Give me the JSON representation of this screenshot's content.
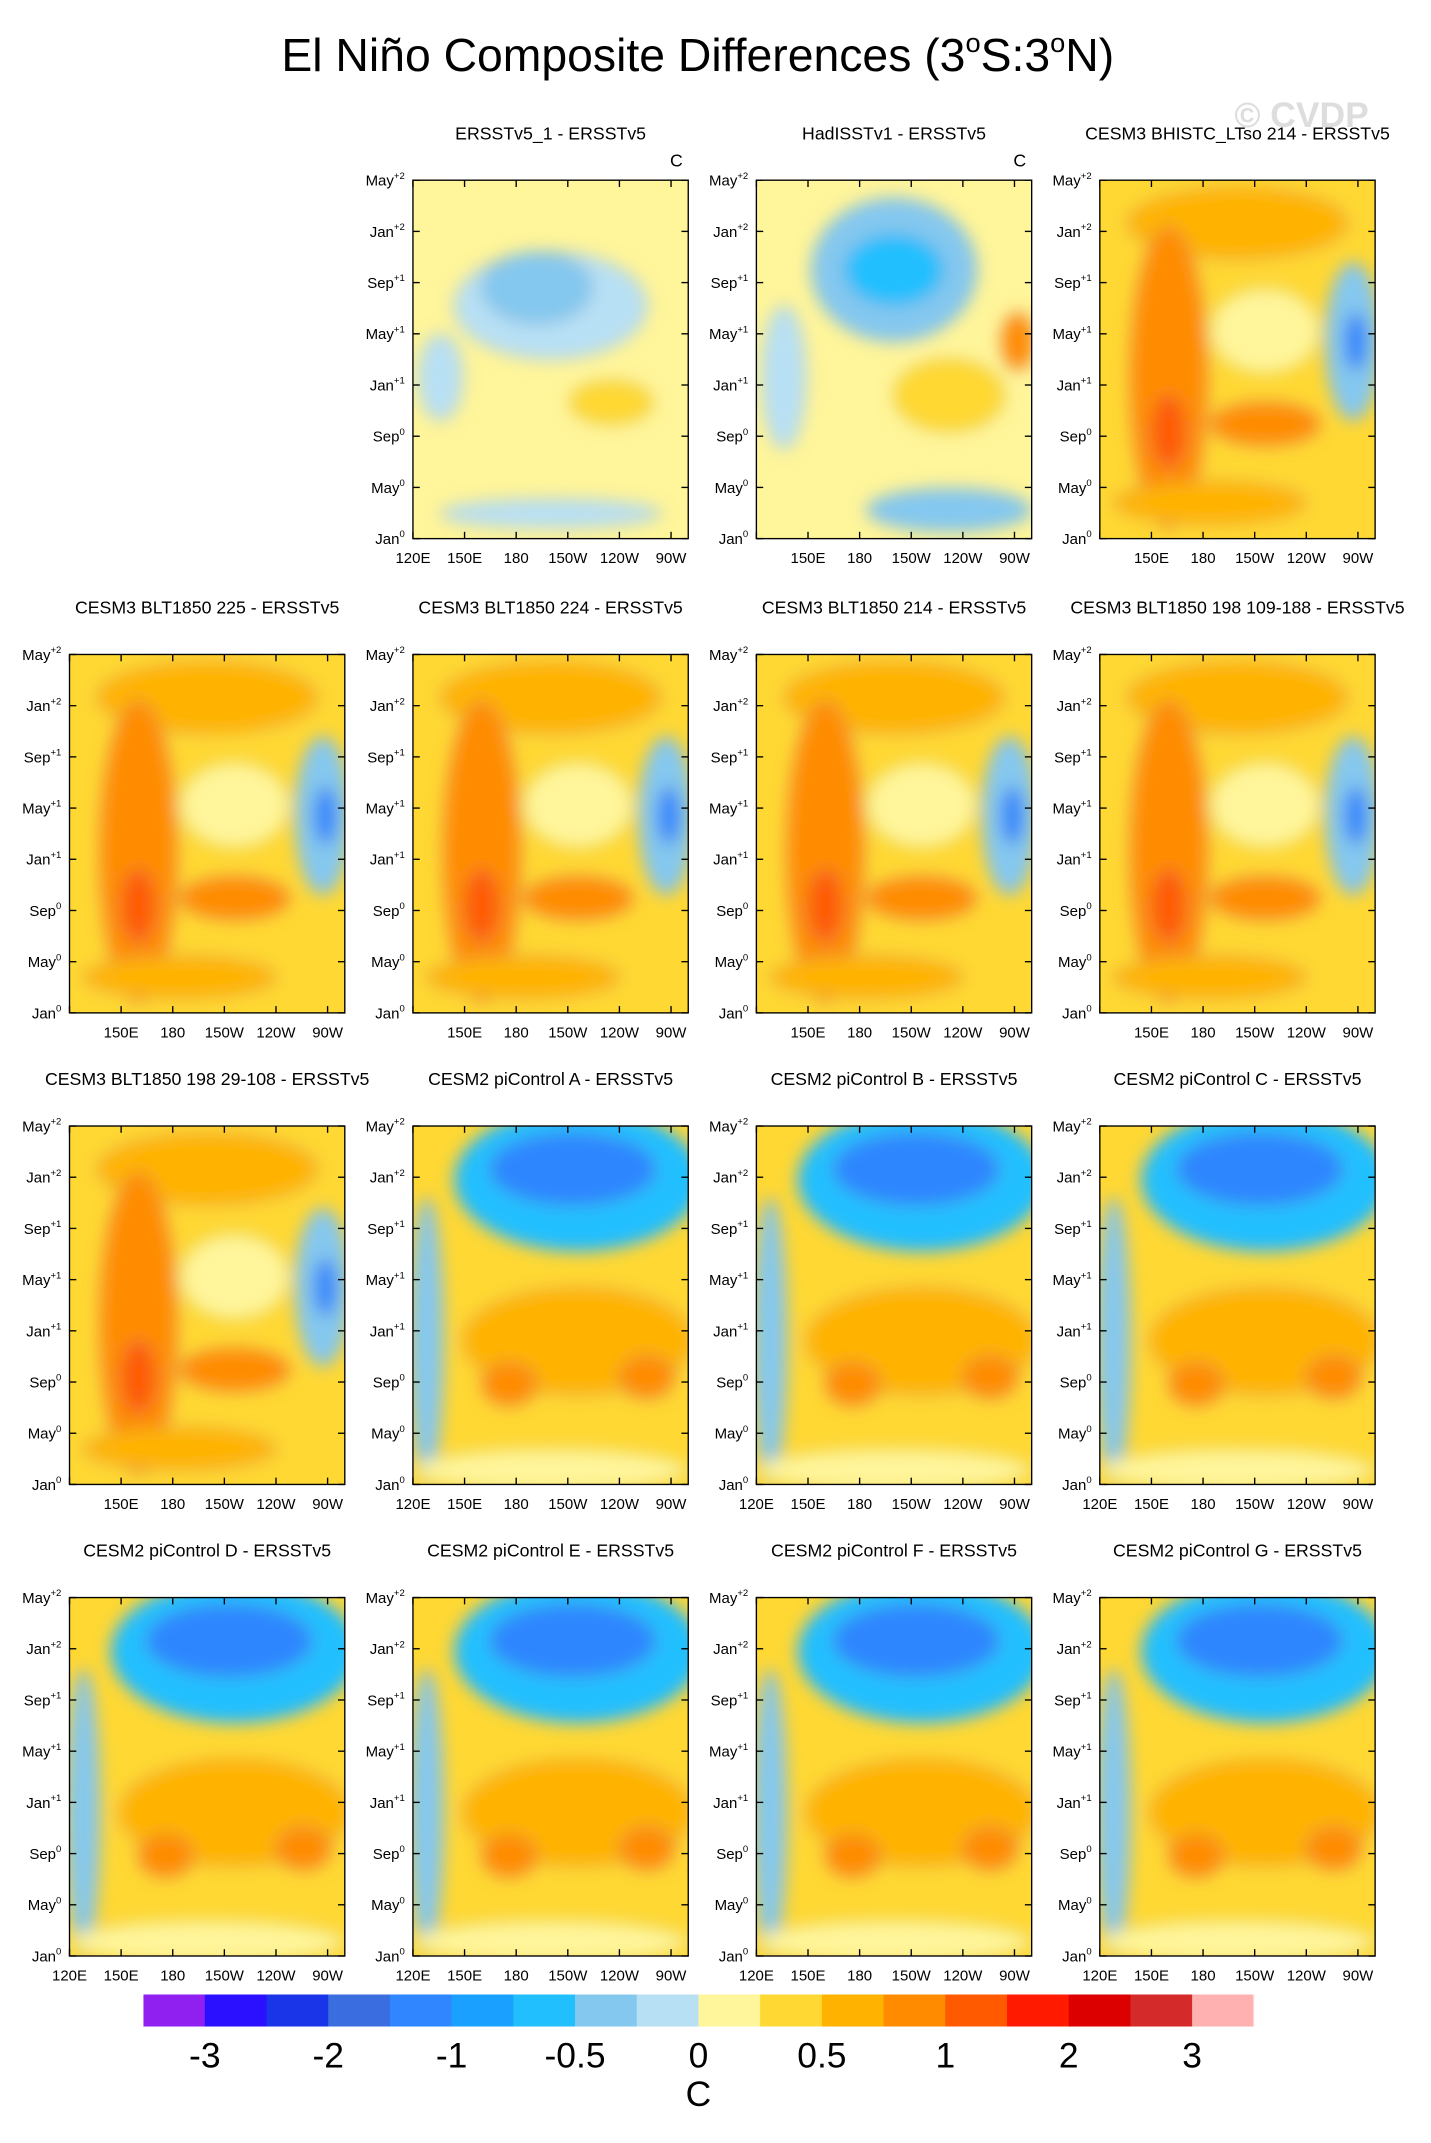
{
  "title": "El Niño Composite Differences (3",
  "title_deg1": "o",
  "title_mid": "S:3",
  "title_deg2": "o",
  "title_end": "N)",
  "watermark": "© CVDP",
  "time_ticks": [
    {
      "label": "Jan",
      "sup": "0"
    },
    {
      "label": "May",
      "sup": "0"
    },
    {
      "label": "Sep",
      "sup": "0"
    },
    {
      "label": "Jan",
      "sup": "+1"
    },
    {
      "label": "May",
      "sup": "+1"
    },
    {
      "label": "Sep",
      "sup": "+1"
    },
    {
      "label": "Jan",
      "sup": "+2"
    },
    {
      "label": "May",
      "sup": "+2"
    }
  ],
  "chart_data": [
    {
      "type": "contour",
      "title": "ERSSTv5_1 - ERSSTv5",
      "corner": "C",
      "xticks": [
        "120E",
        "150E",
        "180",
        "150W",
        "120W",
        "90W"
      ]
    },
    {
      "type": "contour",
      "title": "HadISSTv1 - ERSSTv5",
      "corner": "C",
      "xticks": [
        "150E",
        "180",
        "150W",
        "120W",
        "90W"
      ]
    },
    {
      "type": "contour",
      "title": "CESM3 BHISTC_LTso 214 - ERSSTv5",
      "xticks": [
        "150E",
        "180",
        "150W",
        "120W",
        "90W"
      ]
    },
    {
      "type": "contour",
      "title": "CESM3 BLT1850 225 - ERSSTv5",
      "xticks": [
        "150E",
        "180",
        "150W",
        "120W",
        "90W"
      ]
    },
    {
      "type": "contour",
      "title": "CESM3 BLT1850 224 - ERSSTv5",
      "xticks": [
        "150E",
        "180",
        "150W",
        "120W",
        "90W"
      ]
    },
    {
      "type": "contour",
      "title": "CESM3 BLT1850 214 - ERSSTv5",
      "xticks": [
        "150E",
        "180",
        "150W",
        "120W",
        "90W"
      ]
    },
    {
      "type": "contour",
      "title": "CESM3 BLT1850 198 109-188 - ERSSTv5",
      "xticks": [
        "150E",
        "180",
        "150W",
        "120W",
        "90W"
      ]
    },
    {
      "type": "contour",
      "title": "CESM3 BLT1850 198 29-108 - ERSSTv5",
      "xticks": [
        "150E",
        "180",
        "150W",
        "120W",
        "90W"
      ]
    },
    {
      "type": "contour",
      "title": "CESM2 piControl A - ERSSTv5",
      "xticks": [
        "120E",
        "150E",
        "180",
        "150W",
        "120W",
        "90W"
      ]
    },
    {
      "type": "contour",
      "title": "CESM2 piControl B - ERSSTv5",
      "xticks": [
        "120E",
        "150E",
        "180",
        "150W",
        "120W",
        "90W"
      ]
    },
    {
      "type": "contour",
      "title": "CESM2 piControl C - ERSSTv5",
      "xticks": [
        "120E",
        "150E",
        "180",
        "150W",
        "120W",
        "90W"
      ]
    },
    {
      "type": "contour",
      "title": "CESM2 piControl D - ERSSTv5",
      "xticks": [
        "120E",
        "150E",
        "180",
        "150W",
        "120W",
        "90W"
      ]
    },
    {
      "type": "contour",
      "title": "CESM2 piControl E - ERSSTv5",
      "xticks": [
        "120E",
        "150E",
        "180",
        "150W",
        "120W",
        "90W"
      ]
    },
    {
      "type": "contour",
      "title": "CESM2 piControl F - ERSSTv5",
      "xticks": [
        "120E",
        "150E",
        "180",
        "150W",
        "120W",
        "90W"
      ]
    },
    {
      "type": "contour",
      "title": "CESM2 piControl G - ERSSTv5",
      "xticks": [
        "120E",
        "150E",
        "180",
        "150W",
        "120W",
        "90W"
      ]
    }
  ],
  "colorbar": {
    "colors": [
      "#9020f0",
      "#2a10ff",
      "#1a35e8",
      "#3a6ee0",
      "#2f86ff",
      "#1aa0ff",
      "#22bfff",
      "#84c8f0",
      "#b8e0f5",
      "#fff59a",
      "#ffd833",
      "#ffb300",
      "#ff8c00",
      "#ff5a00",
      "#ff1a00",
      "#dd0000",
      "#d42a2a",
      "#ffb0b0"
    ],
    "labels": [
      -3,
      -2,
      -1,
      -0.5,
      0,
      0.5,
      1,
      2,
      3
    ],
    "unit": "C"
  }
}
